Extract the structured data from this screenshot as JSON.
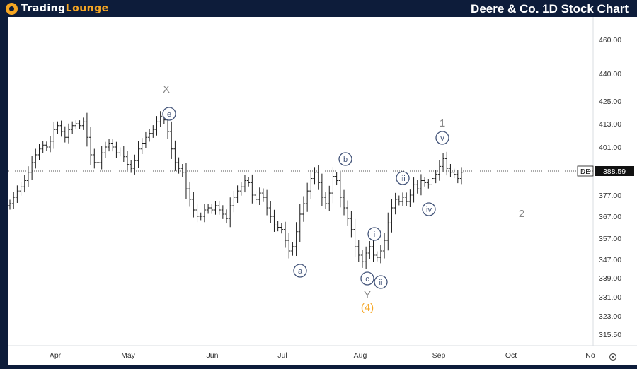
{
  "header": {
    "logo_part1": "TradingLounge",
    "logo_part1_a": "Trading",
    "logo_part1_b": "Lounge",
    "title": "Deere & Co. 1D Stock Chart"
  },
  "colors": {
    "frame": "#0d1c3a",
    "accent": "#f5a623",
    "wave_label": "#44557a",
    "bars": "#1a1a1a"
  },
  "chart_data": {
    "type": "ohlc",
    "symbol": "DE",
    "last_price": "388.59",
    "ylim": [
      310,
      468
    ],
    "y_ticks": [
      "460.00",
      "440.00",
      "425.00",
      "413.00",
      "401.00",
      "388.59",
      "377.00",
      "367.00",
      "357.00",
      "347.00",
      "339.00",
      "331.00",
      "323.00",
      "315.50"
    ],
    "x_ticks": [
      "Apr",
      "May",
      "Jun",
      "Jul",
      "Aug",
      "Sep",
      "Oct",
      "No"
    ],
    "closes": [
      373,
      376,
      379,
      381,
      384,
      388,
      393,
      397,
      400,
      402,
      401,
      404,
      410,
      412,
      409,
      406,
      410,
      412,
      413,
      412,
      414,
      406,
      397,
      393,
      393,
      398,
      401,
      403,
      401,
      398,
      399,
      396,
      392,
      390,
      394,
      400,
      403,
      406,
      408,
      410,
      414,
      417,
      415,
      409,
      400,
      393,
      390,
      388,
      380,
      375,
      370,
      367,
      367,
      370,
      371,
      370,
      372,
      370,
      368,
      366,
      372,
      376,
      379,
      381,
      384,
      383,
      377,
      375,
      378,
      376,
      371,
      367,
      363,
      362,
      361,
      356,
      351,
      353,
      360,
      368,
      373,
      379,
      385,
      388,
      383,
      376,
      373,
      378,
      386,
      384,
      376,
      371,
      366,
      361,
      353,
      349,
      346,
      350,
      353,
      349,
      348,
      351,
      356,
      364,
      371,
      375,
      374,
      376,
      374,
      377,
      382,
      380,
      384,
      383,
      382,
      385,
      387,
      391,
      395,
      390,
      388,
      387,
      385,
      388
    ],
    "labels": {
      "wave_X": "X",
      "wave_e": "e",
      "wave_a": "a",
      "wave_b": "b",
      "wave_c": "c",
      "wave_Y": "Y",
      "wave_4": "(4)",
      "wave_i": "i",
      "wave_ii": "ii",
      "wave_iii": "iii",
      "wave_iv": "iv",
      "wave_v": "v",
      "wave_1": "1",
      "wave_2": "2"
    }
  }
}
